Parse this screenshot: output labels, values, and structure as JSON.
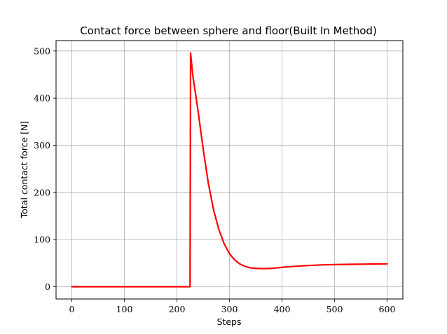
{
  "chart_data": {
    "type": "line",
    "title": "Contact force between sphere and floor(Built In Method)",
    "xlabel": "Steps",
    "ylabel": "Total contact force [N]",
    "xlim": [
      -30,
      630
    ],
    "ylim": [
      -26,
      522
    ],
    "xticks": [
      0,
      100,
      200,
      300,
      400,
      500,
      600
    ],
    "yticks": [
      0,
      100,
      200,
      300,
      400,
      500
    ],
    "grid": true,
    "legend": "none",
    "series": [
      {
        "color": "#ff0000",
        "x": [
          0,
          50,
          100,
          150,
          200,
          225,
          226,
          230,
          240,
          250,
          260,
          270,
          280,
          290,
          300,
          310,
          320,
          330,
          340,
          350,
          360,
          370,
          380,
          390,
          400,
          420,
          450,
          480,
          500,
          530,
          560,
          600
        ],
        "y": [
          0,
          0,
          0,
          0,
          0,
          0,
          496,
          450,
          375,
          292,
          218,
          162,
          121,
          91,
          70,
          57,
          48,
          43,
          40,
          39,
          38.5,
          38.5,
          39,
          40,
          41,
          43,
          45,
          46.5,
          47,
          47.5,
          48,
          48.5
        ]
      }
    ]
  }
}
